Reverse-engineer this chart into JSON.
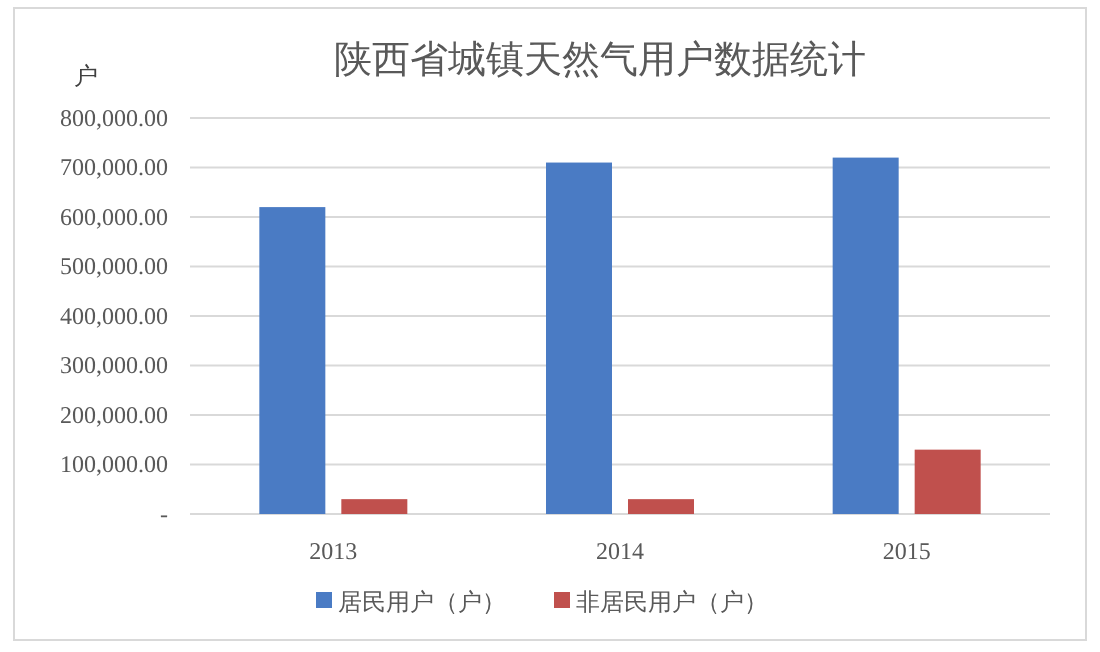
{
  "chart_data": {
    "type": "bar",
    "title": "陕西省城镇天然气用户数据统计",
    "ylabel": "户",
    "categories": [
      "2013",
      "2014",
      "2015"
    ],
    "series": [
      {
        "name": "居民用户（户）",
        "color": "#4a7bc4",
        "values": [
          620000,
          710000,
          720000
        ]
      },
      {
        "name": "非居民用户（户）",
        "color": "#c0504d",
        "values": [
          30000,
          30000,
          130000
        ]
      }
    ],
    "ylim": [
      0,
      800000
    ],
    "yticks": [
      {
        "value": 0,
        "label": "-"
      },
      {
        "value": 100000,
        "label": "100,000.00"
      },
      {
        "value": 200000,
        "label": "200,000.00"
      },
      {
        "value": 300000,
        "label": "300,000.00"
      },
      {
        "value": 400000,
        "label": "400,000.00"
      },
      {
        "value": 500000,
        "label": "500,000.00"
      },
      {
        "value": 600000,
        "label": "600,000.00"
      },
      {
        "value": 700000,
        "label": "700,000.00"
      },
      {
        "value": 800000,
        "label": "800,000.00"
      }
    ],
    "grid": "y",
    "legend": "bottom"
  }
}
